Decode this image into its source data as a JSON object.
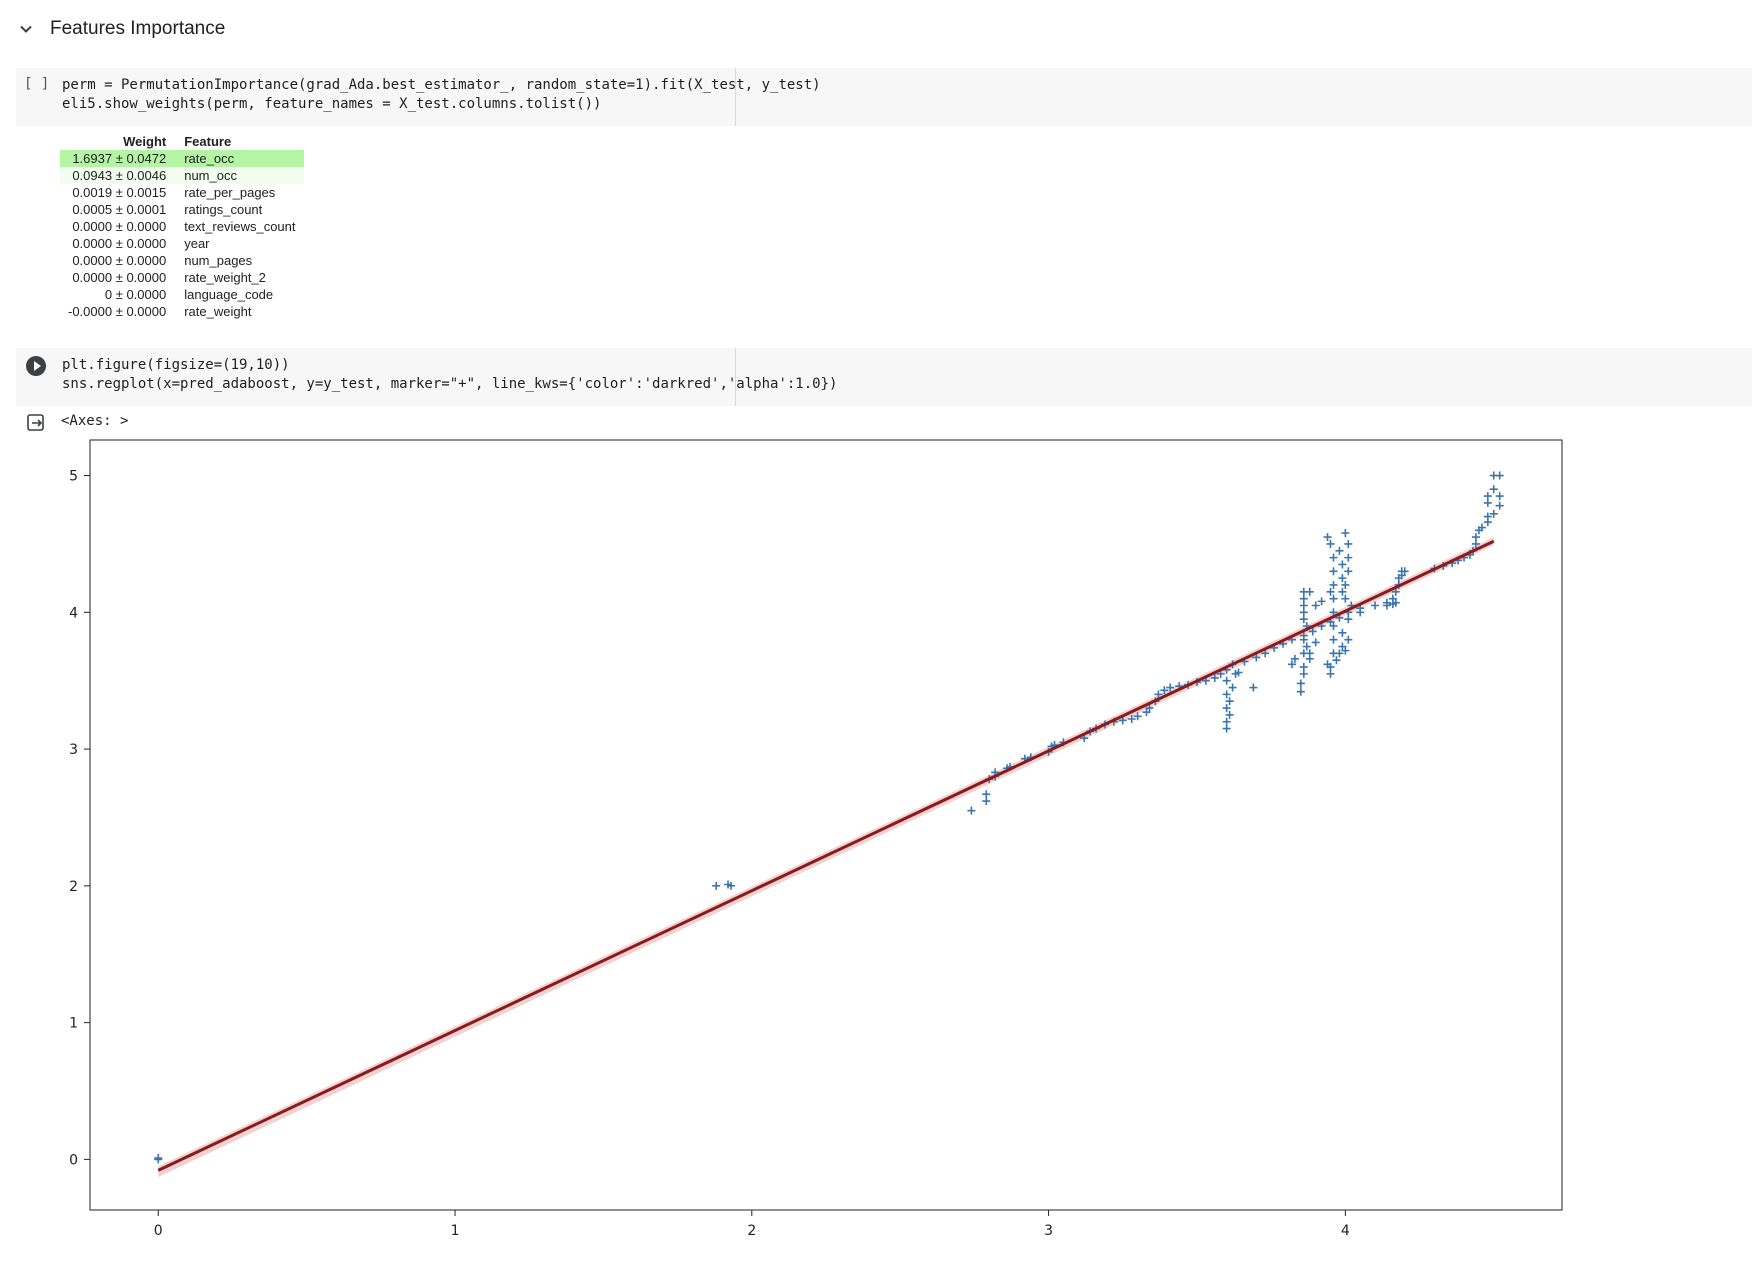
{
  "section": {
    "title": "Features Importance"
  },
  "cell1": {
    "bracket": "[ ]",
    "line1": "perm = PermutationImportance(grad_Ada.best_estimator_, random_state=1).fit(X_test, y_test)",
    "line2": "eli5.show_weights(perm, feature_names = X_test.columns.tolist())"
  },
  "weights_table": {
    "headers": {
      "weight": "Weight",
      "feature": "Feature"
    },
    "rows": [
      {
        "weight": "1.6937 ± 0.0472",
        "feature": "rate_occ",
        "bg": "#b3f5a3"
      },
      {
        "weight": "0.0943 ± 0.0046",
        "feature": "num_occ",
        "bg": "#f2fcef"
      },
      {
        "weight": "0.0019 ± 0.0015",
        "feature": "rate_per_pages",
        "bg": ""
      },
      {
        "weight": "0.0005 ± 0.0001",
        "feature": "ratings_count",
        "bg": ""
      },
      {
        "weight": "0.0000 ± 0.0000",
        "feature": "text_reviews_count",
        "bg": ""
      },
      {
        "weight": "0.0000 ± 0.0000",
        "feature": "year",
        "bg": ""
      },
      {
        "weight": "0.0000 ± 0.0000",
        "feature": "num_pages",
        "bg": ""
      },
      {
        "weight": "0.0000 ± 0.0000",
        "feature": "rate_weight_2",
        "bg": ""
      },
      {
        "weight": "0 ± 0.0000",
        "feature": "language_code",
        "bg": ""
      },
      {
        "weight": "-0.0000 ± 0.0000",
        "feature": "rate_weight",
        "bg": ""
      }
    ]
  },
  "cell2": {
    "line1": "plt.figure(figsize=(19,10))",
    "line2": "sns.regplot(x=pred_adaboost, y=y_test, marker=\"+\", line_kws={'color':'darkred','alpha':1.0})"
  },
  "output": {
    "axes_text": "<Axes: >"
  },
  "colors": {
    "scatter": "#3b75af",
    "line": "#8b1a1a",
    "ci": "#e8b4b4"
  },
  "chart_data": {
    "type": "scatter",
    "xlabel": "",
    "ylabel": "",
    "xlim": [
      -0.23,
      4.73
    ],
    "ylim": [
      -0.37,
      5.26
    ],
    "xticks": [
      0,
      1,
      2,
      3,
      4
    ],
    "yticks": [
      0,
      1,
      2,
      3,
      4,
      5
    ],
    "marker": "+",
    "regression_line": {
      "x": [
        0,
        4.5
      ],
      "y": [
        -0.08,
        4.52
      ]
    },
    "points": [
      [
        0,
        0
      ],
      [
        0,
        0.01
      ],
      [
        1.88,
        2
      ],
      [
        1.93,
        2
      ],
      [
        1.92,
        2.01
      ],
      [
        2.74,
        2.55
      ],
      [
        2.79,
        2.62
      ],
      [
        2.79,
        2.67
      ],
      [
        2.8,
        2.78
      ],
      [
        2.82,
        2.8
      ],
      [
        2.82,
        2.83
      ],
      [
        2.86,
        2.86
      ],
      [
        2.87,
        2.87
      ],
      [
        2.92,
        2.93
      ],
      [
        2.94,
        2.94
      ],
      [
        3.0,
        2.98
      ],
      [
        3.01,
        3.02
      ],
      [
        3.02,
        3.03
      ],
      [
        3.05,
        3.05
      ],
      [
        3.12,
        3.08
      ],
      [
        3.14,
        3.13
      ],
      [
        3.16,
        3.15
      ],
      [
        3.19,
        3.18
      ],
      [
        3.22,
        3.2
      ],
      [
        3.25,
        3.21
      ],
      [
        3.28,
        3.22
      ],
      [
        3.3,
        3.24
      ],
      [
        3.33,
        3.27
      ],
      [
        3.34,
        3.3
      ],
      [
        3.36,
        3.35
      ],
      [
        3.37,
        3.4
      ],
      [
        3.39,
        3.43
      ],
      [
        3.41,
        3.45
      ],
      [
        3.44,
        3.46
      ],
      [
        3.47,
        3.47
      ],
      [
        3.5,
        3.49
      ],
      [
        3.53,
        3.5
      ],
      [
        3.56,
        3.52
      ],
      [
        3.58,
        3.55
      ],
      [
        3.6,
        3.58
      ],
      [
        3.62,
        3.62
      ],
      [
        3.66,
        3.64
      ],
      [
        3.7,
        3.67
      ],
      [
        3.73,
        3.7
      ],
      [
        3.76,
        3.74
      ],
      [
        3.79,
        3.77
      ],
      [
        3.82,
        3.8
      ],
      [
        3.86,
        3.83
      ],
      [
        3.89,
        3.86
      ],
      [
        3.92,
        3.9
      ],
      [
        3.95,
        3.93
      ],
      [
        3.98,
        3.96
      ],
      [
        4.01,
        4.0
      ],
      [
        4.05,
        4.03
      ],
      [
        4.1,
        4.05
      ],
      [
        4.14,
        4.07
      ],
      [
        4.16,
        4.1
      ],
      [
        4.17,
        4.15
      ],
      [
        4.18,
        4.2
      ],
      [
        4.18,
        4.25
      ],
      [
        4.19,
        4.3
      ],
      [
        4.3,
        4.32
      ],
      [
        4.33,
        4.34
      ],
      [
        4.36,
        4.36
      ],
      [
        4.38,
        4.38
      ],
      [
        4.4,
        4.4
      ],
      [
        4.42,
        4.42
      ],
      [
        4.43,
        4.45
      ],
      [
        4.44,
        4.5
      ],
      [
        4.44,
        4.55
      ],
      [
        4.45,
        4.6
      ],
      [
        4.46,
        4.62
      ],
      [
        4.48,
        4.66
      ],
      [
        4.48,
        4.7
      ],
      [
        4.5,
        4.72
      ],
      [
        4.48,
        4.8
      ],
      [
        4.48,
        4.85
      ],
      [
        4.5,
        4.9
      ],
      [
        4.5,
        5.0
      ],
      [
        4.52,
        5.0
      ],
      [
        4.52,
        4.78
      ],
      [
        4.52,
        4.85
      ],
      [
        3.6,
        3.15
      ],
      [
        3.6,
        3.2
      ],
      [
        3.61,
        3.25
      ],
      [
        3.6,
        3.3
      ],
      [
        3.61,
        3.35
      ],
      [
        3.6,
        3.4
      ],
      [
        3.62,
        3.45
      ],
      [
        3.6,
        3.5
      ],
      [
        3.63,
        3.55
      ],
      [
        3.69,
        3.45
      ],
      [
        3.64,
        3.56
      ],
      [
        3.82,
        3.62
      ],
      [
        3.83,
        3.66
      ],
      [
        3.85,
        3.42
      ],
      [
        3.85,
        3.48
      ],
      [
        3.86,
        3.55
      ],
      [
        3.86,
        3.6
      ],
      [
        3.86,
        3.7
      ],
      [
        3.87,
        3.75
      ],
      [
        3.86,
        3.8
      ],
      [
        3.87,
        3.9
      ],
      [
        3.86,
        3.95
      ],
      [
        3.86,
        4.0
      ],
      [
        3.86,
        4.05
      ],
      [
        3.86,
        4.1
      ],
      [
        3.86,
        4.15
      ],
      [
        3.88,
        4.15
      ],
      [
        3.88,
        3.7
      ],
      [
        3.88,
        3.66
      ],
      [
        3.9,
        3.78
      ],
      [
        3.92,
        4.08
      ],
      [
        3.9,
        4.05
      ],
      [
        3.94,
        4.55
      ],
      [
        3.95,
        4.5
      ],
      [
        3.96,
        4.4
      ],
      [
        3.96,
        4.3
      ],
      [
        3.96,
        4.2
      ],
      [
        3.95,
        4.15
      ],
      [
        3.96,
        4.1
      ],
      [
        3.96,
        4.0
      ],
      [
        3.96,
        3.9
      ],
      [
        3.96,
        3.8
      ],
      [
        3.96,
        3.7
      ],
      [
        3.95,
        3.6
      ],
      [
        3.95,
        3.55
      ],
      [
        3.94,
        3.62
      ],
      [
        3.97,
        3.65
      ],
      [
        3.98,
        4.45
      ],
      [
        3.99,
        4.35
      ],
      [
        3.99,
        4.25
      ],
      [
        3.99,
        4.15
      ],
      [
        3.99,
        3.85
      ],
      [
        3.99,
        3.75
      ],
      [
        3.98,
        3.7
      ],
      [
        4.0,
        4.58
      ],
      [
        4.01,
        4.5
      ],
      [
        4.01,
        4.4
      ],
      [
        4.01,
        4.3
      ],
      [
        4.0,
        4.2
      ],
      [
        4.0,
        4.1
      ],
      [
        4.01,
        3.95
      ],
      [
        4.01,
        3.8
      ],
      [
        4.0,
        3.72
      ],
      [
        4.02,
        4.05
      ],
      [
        4.05,
        4.0
      ],
      [
        4.14,
        4.05
      ],
      [
        4.16,
        4.06
      ],
      [
        4.17,
        4.07
      ],
      [
        4.19,
        4.27
      ],
      [
        4.2,
        4.3
      ]
    ]
  }
}
